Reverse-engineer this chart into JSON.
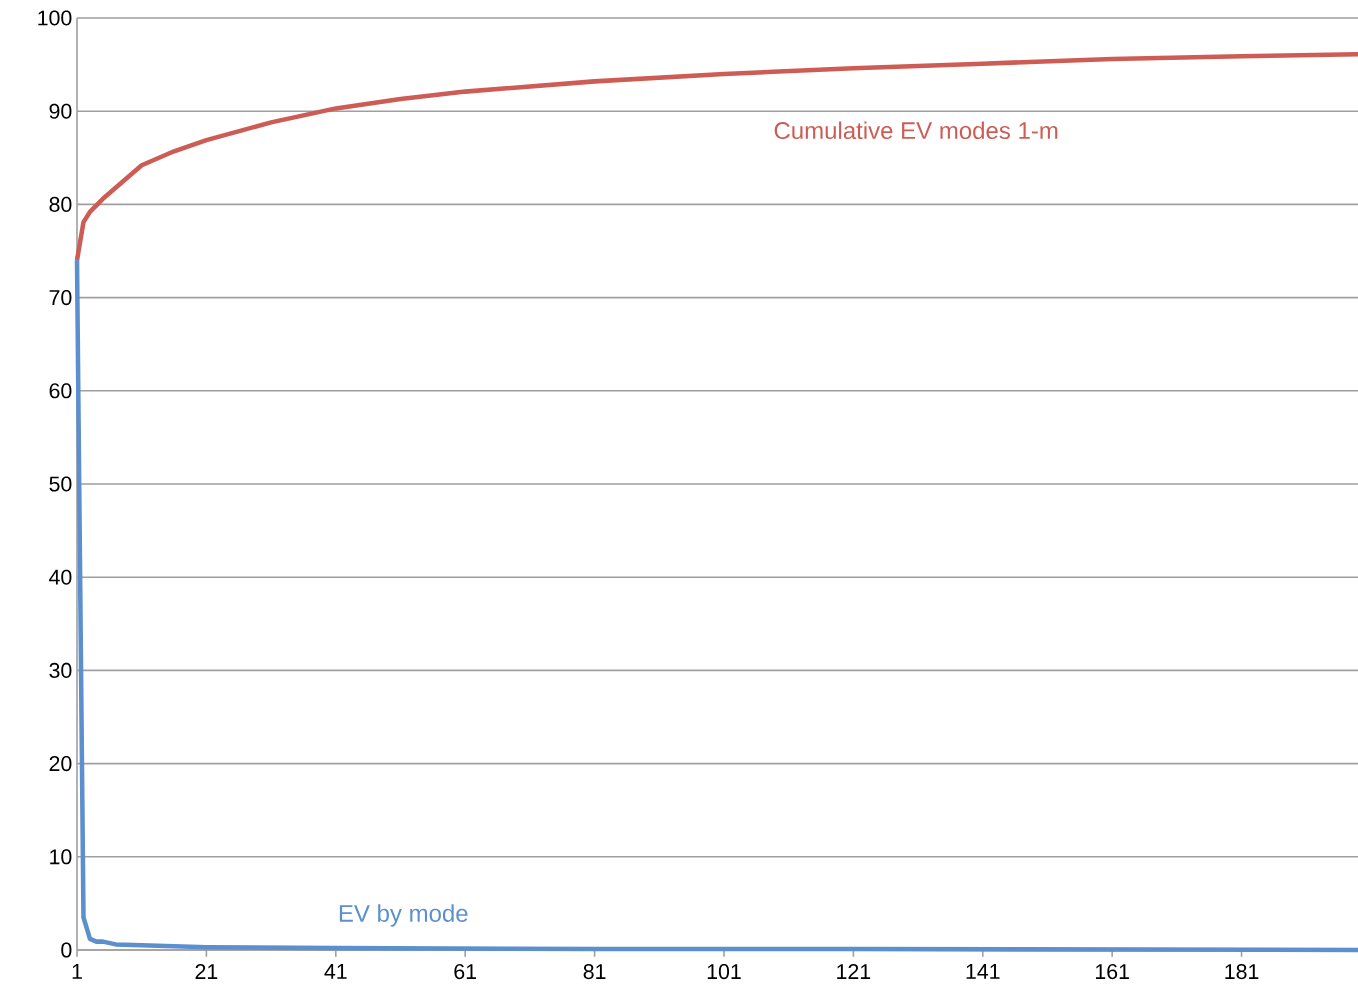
{
  "chart_data": {
    "type": "line",
    "xlim": [
      1,
      199
    ],
    "xticks": [
      1,
      21,
      41,
      61,
      81,
      101,
      121,
      141,
      161,
      181
    ],
    "ylim": [
      0,
      100
    ],
    "yticks": [
      0,
      10,
      20,
      30,
      40,
      50,
      60,
      70,
      80,
      90,
      100
    ],
    "grid": "y",
    "marker": "none",
    "line_style": "solid",
    "series": [
      {
        "name": "Cumulative EV modes 1-m",
        "color": "#cd5c54",
        "x": [
          1,
          2,
          3,
          5,
          8,
          11,
          16,
          21,
          31,
          41,
          51,
          61,
          81,
          101,
          121,
          141,
          161,
          181,
          199
        ],
        "values": [
          74,
          78.1,
          79.2,
          80.6,
          82.4,
          84.2,
          85.7,
          86.9,
          88.8,
          90.3,
          91.3,
          92.1,
          93.2,
          94.0,
          94.6,
          95.1,
          95.6,
          95.9,
          96.1
        ]
      },
      {
        "name": "EV by mode",
        "color": "#5b8fce",
        "x": [
          1,
          2,
          3,
          4,
          5,
          7,
          11,
          21,
          41,
          81,
          121,
          199
        ],
        "values": [
          74,
          3.5,
          1.2,
          0.9,
          0.9,
          0.6,
          0.5,
          0.3,
          0.2,
          0.1,
          0.1,
          0.0
        ]
      }
    ]
  }
}
